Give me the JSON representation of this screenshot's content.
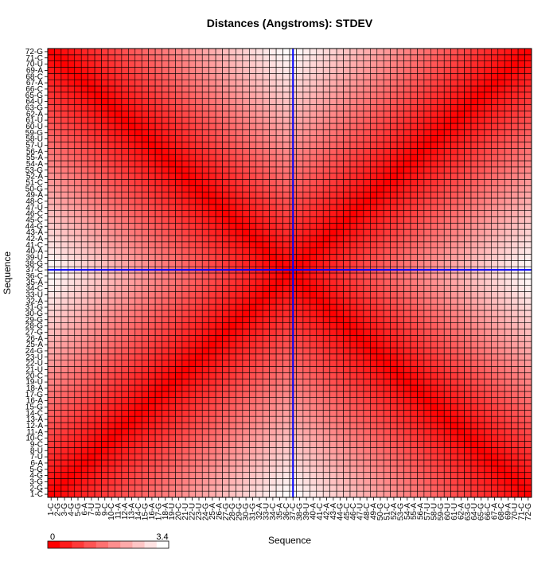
{
  "chart_data": {
    "type": "heatmap",
    "title": "Distances (Angstroms):  STDEV",
    "xlabel": "Sequence",
    "ylabel": "Sequence",
    "n": 72,
    "labels": [
      "1-C",
      "2-G",
      "3-G",
      "4-G",
      "5-G",
      "6-A",
      "7-U",
      "8-U",
      "9-C",
      "10-C",
      "11-A",
      "12-A",
      "13-A",
      "14-C",
      "15-G",
      "16-A",
      "17-G",
      "18-A",
      "19-U",
      "20-C",
      "21-U",
      "22-U",
      "23-U",
      "24-G",
      "25-A",
      "26-A",
      "27-G",
      "28-G",
      "29-G",
      "30-G",
      "31-G",
      "32-A",
      "33-U",
      "34-C",
      "35-A",
      "36-C",
      "37-C",
      "38-G",
      "39-U",
      "40-A",
      "41-C",
      "42-A",
      "43-A",
      "44-G",
      "45-C",
      "46-C",
      "47-U",
      "48-C",
      "49-A",
      "50-G",
      "51-C",
      "52-A",
      "53-G",
      "54-A",
      "55-A",
      "56-A",
      "57-U",
      "58-U",
      "59-G",
      "60-U",
      "61-U",
      "62-A",
      "63-G",
      "64-U",
      "65-G",
      "66-C",
      "67-A",
      "68-C",
      "69-A",
      "70-U",
      "71-C",
      "72-G"
    ],
    "value_range": [
      0,
      3.4
    ],
    "colorbar": {
      "min_label": "0",
      "max_label": "3.4",
      "steps": 10,
      "low_color": "#ff0000",
      "high_color": "#ffffff"
    },
    "cells_note": "value(i,j) = 3.4 * min(|i-j|, |i+j-73|) / 35.5, i,j = 1..72",
    "reference_line": {
      "position_index": 37
    },
    "colors": {
      "line": "#0000ff",
      "grid": "#000000"
    }
  }
}
